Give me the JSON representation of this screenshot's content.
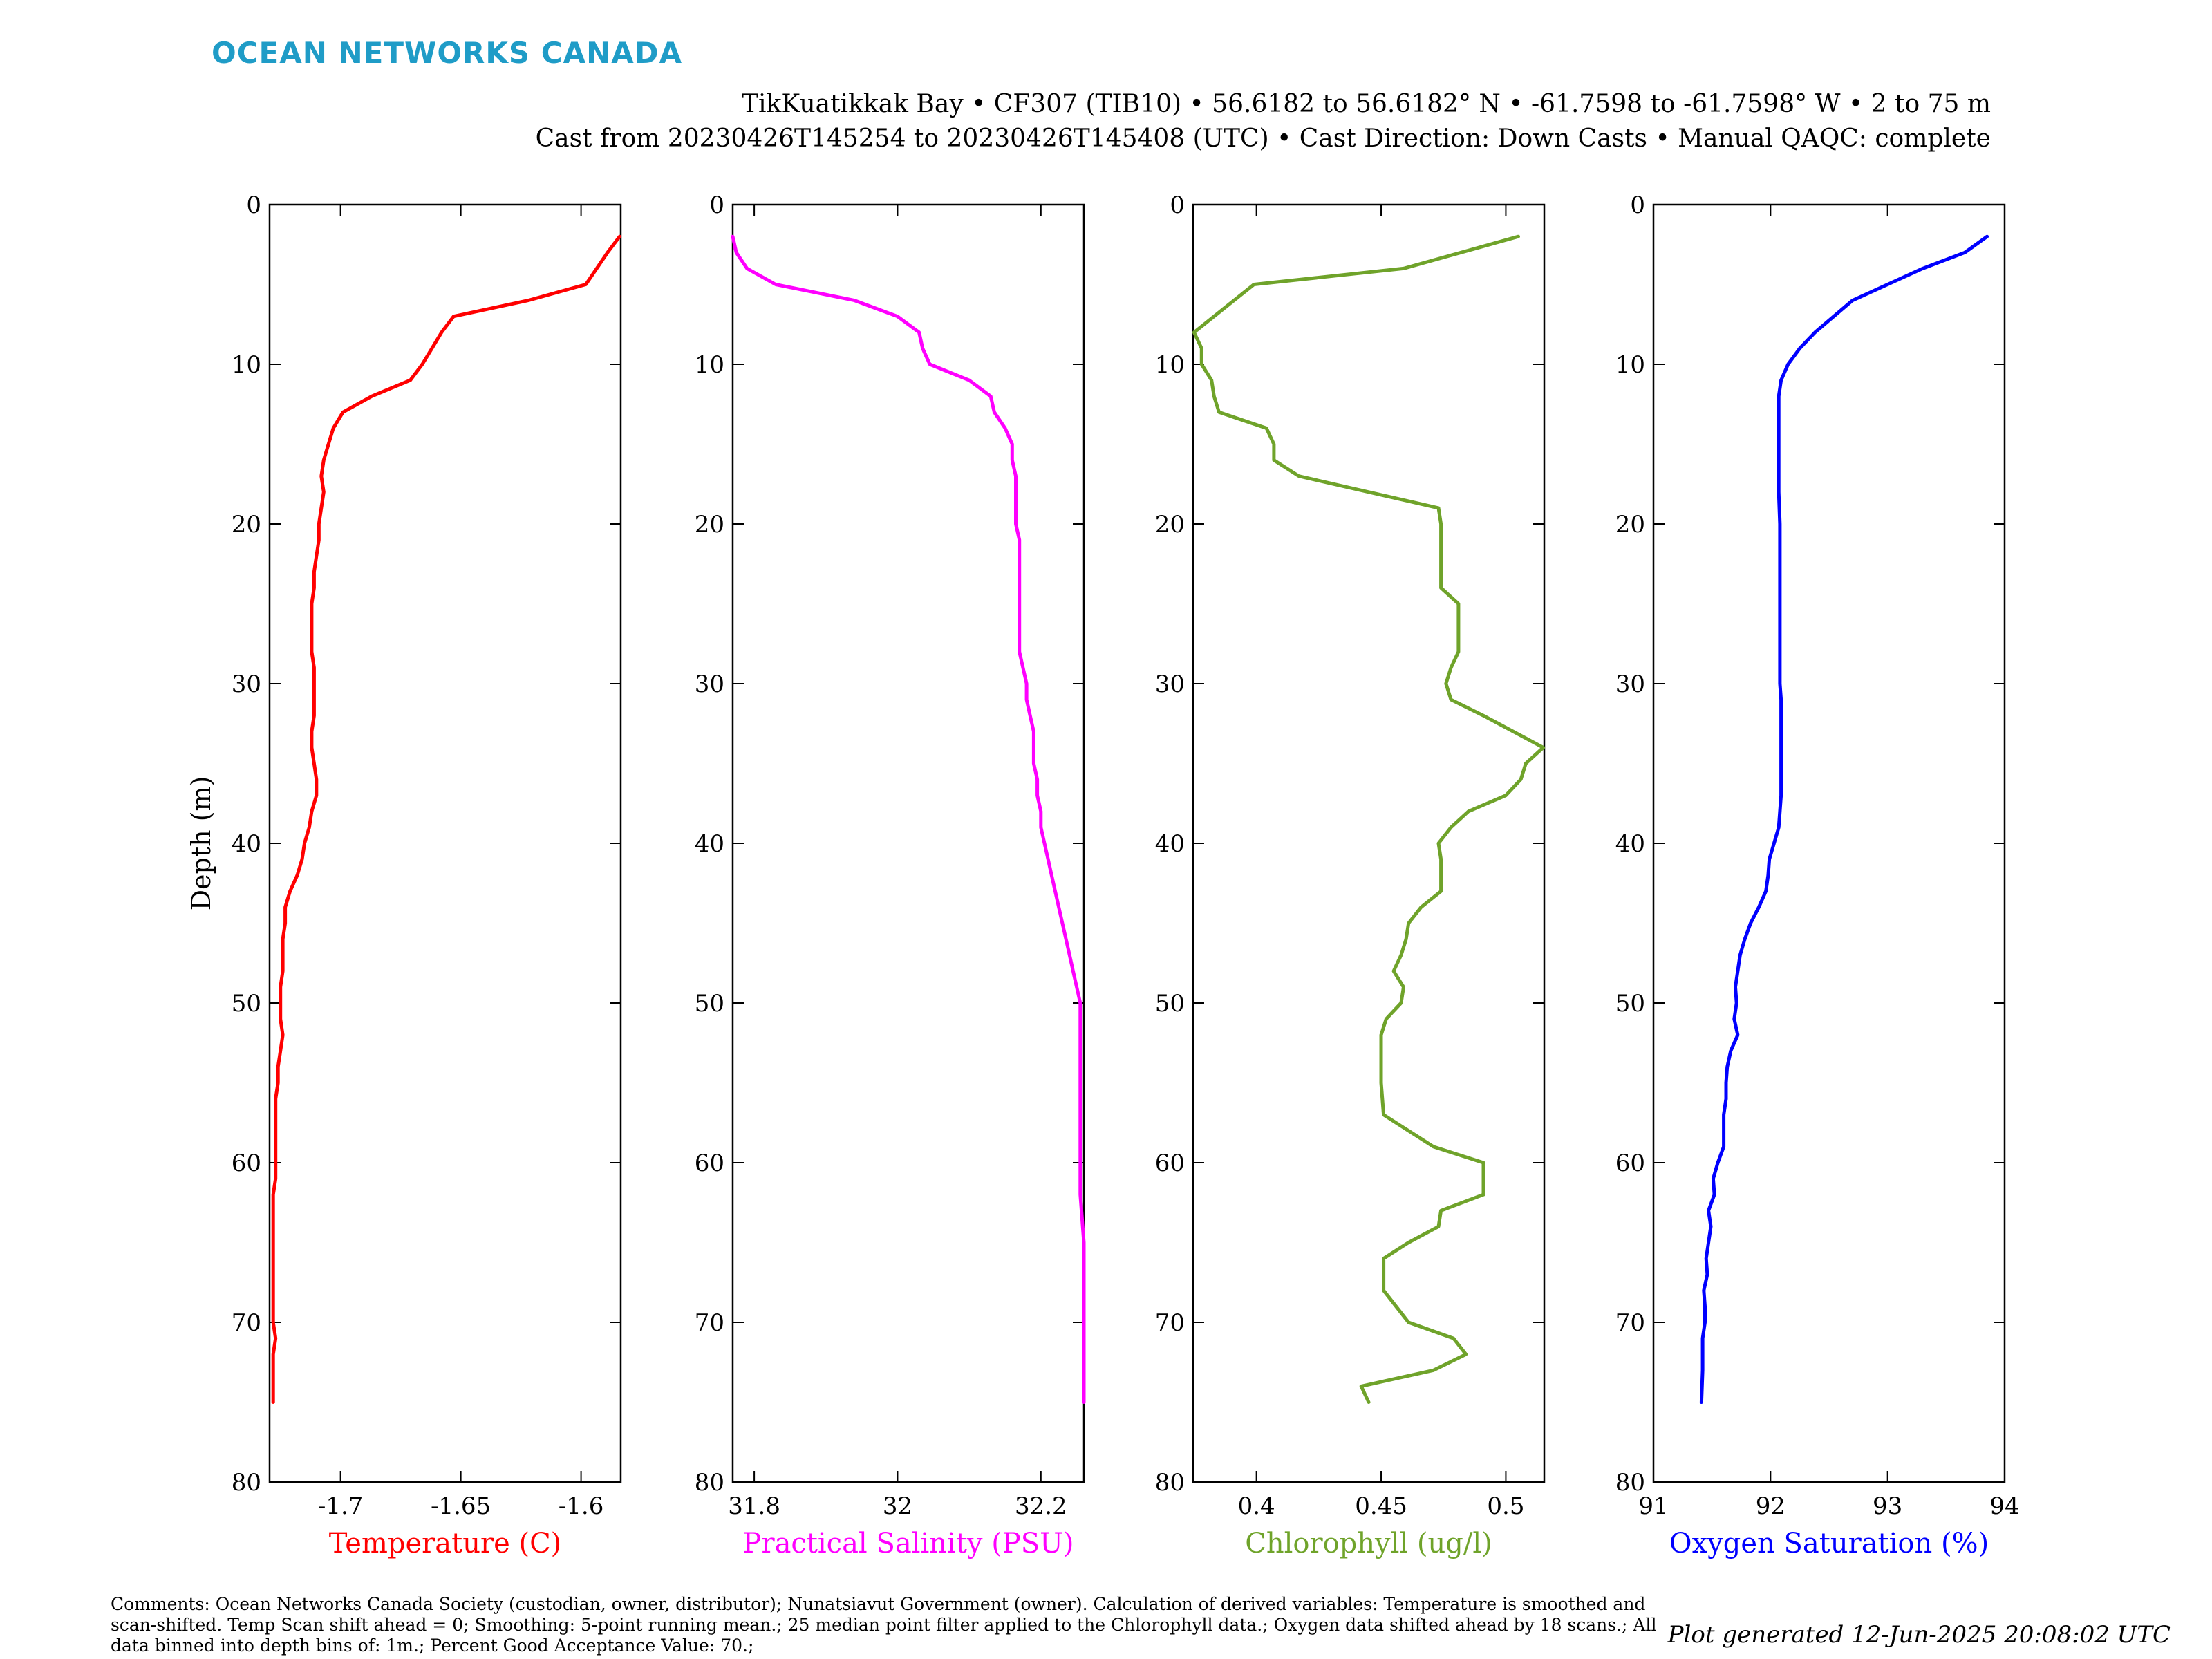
{
  "brand": "OCEAN NETWORKS CANADA",
  "header": {
    "line1": "TikKuatikkak Bay • CF307 (TIB10) • 56.6182 to 56.6182° N • -61.7598 to -61.7598° W • 2 to 75 m",
    "line2": "Cast from 20230426T145254 to 20230426T145408 (UTC) • Cast Direction: Down Casts • Manual QAQC: complete"
  },
  "comments": "Comments: Ocean Networks Canada Society (custodian, owner, distributor); Nunatsiavut Government (owner). Calculation of derived variables: Temperature is smoothed and scan-shifted. Temp Scan shift ahead = 0; Smoothing: 5-point running mean.; 25 median point filter applied to the Chlorophyll data.; Oxygen data shifted ahead by 18 scans.; All data binned into depth bins of: 1m.; Percent Good Acceptance Value: 70.;",
  "generated": "Plot generated 12-Jun-2025 20:08:02 UTC",
  "chart_data": [
    {
      "type": "line",
      "xlabel": "Temperature (C)",
      "ylabel": "Depth (m)",
      "color": "#ff0000",
      "xlim": [
        -1.7295,
        -1.5835
      ],
      "ylim": [
        0,
        80
      ],
      "y_reversed": true,
      "xticks": [
        -1.7,
        -1.65,
        -1.6
      ],
      "xticklabels": [
        "-1.7",
        "-1.65",
        "-1.6"
      ],
      "yticks": [
        0,
        10,
        20,
        30,
        40,
        50,
        60,
        70,
        80
      ],
      "yticklabels": [
        "0",
        "10",
        "20",
        "30",
        "40",
        "50",
        "60",
        "70",
        "80"
      ],
      "x": [
        -1.584,
        -1.589,
        -1.598,
        -1.622,
        -1.653,
        -1.658,
        -1.662,
        -1.666,
        -1.671,
        -1.687,
        -1.699,
        -1.703,
        -1.705,
        -1.707,
        -1.708,
        -1.707,
        -1.708,
        -1.709,
        -1.709,
        -1.71,
        -1.711,
        -1.711,
        -1.712,
        -1.712,
        -1.712,
        -1.712,
        -1.711,
        -1.711,
        -1.711,
        -1.711,
        -1.712,
        -1.712,
        -1.711,
        -1.71,
        -1.71,
        -1.712,
        -1.713,
        -1.715,
        -1.716,
        -1.718,
        -1.721,
        -1.723,
        -1.723,
        -1.724,
        -1.724,
        -1.724,
        -1.725,
        -1.725,
        -1.725,
        -1.724,
        -1.725,
        -1.726,
        -1.726,
        -1.727,
        -1.727,
        -1.727,
        -1.727,
        -1.727,
        -1.727,
        -1.728,
        -1.728,
        -1.728,
        -1.728,
        -1.728,
        -1.728,
        -1.728,
        -1.728,
        -1.728,
        -1.727,
        -1.728,
        -1.728,
        -1.728,
        -1.728
      ],
      "y": [
        2,
        3,
        5,
        6,
        7,
        8,
        9,
        10,
        11,
        12,
        13,
        14,
        15,
        16,
        17,
        18,
        19,
        20,
        21,
        22,
        23,
        24,
        25,
        26,
        27,
        28,
        29,
        30,
        31,
        32,
        33,
        34,
        35,
        36,
        37,
        38,
        39,
        40,
        41,
        42,
        43,
        44,
        45,
        46,
        47,
        48,
        49,
        50,
        51,
        52,
        53,
        54,
        55,
        56,
        57,
        58,
        59,
        60,
        61,
        62,
        63,
        64,
        65,
        66,
        67,
        68,
        69,
        70,
        71,
        72,
        73,
        74,
        75
      ]
    },
    {
      "type": "line",
      "xlabel": "Practical Salinity (PSU)",
      "color": "#ff00ff",
      "xlim": [
        31.77,
        32.26
      ],
      "ylim": [
        0,
        80
      ],
      "y_reversed": true,
      "xticks": [
        31.8,
        32,
        32.2
      ],
      "xticklabels": [
        "31.8",
        "32",
        "32.2"
      ],
      "yticks": [
        0,
        10,
        20,
        30,
        40,
        50,
        60,
        70,
        80
      ],
      "yticklabels": [
        "0",
        "10",
        "20",
        "30",
        "40",
        "50",
        "60",
        "70",
        "80"
      ],
      "x": [
        31.77,
        31.775,
        31.79,
        31.83,
        31.94,
        32.0,
        32.03,
        32.035,
        32.045,
        32.1,
        32.13,
        32.135,
        32.15,
        32.16,
        32.16,
        32.165,
        32.165,
        32.165,
        32.165,
        32.17,
        32.17,
        32.17,
        32.17,
        32.17,
        32.17,
        32.17,
        32.17,
        32.175,
        32.18,
        32.18,
        32.185,
        32.19,
        32.19,
        32.19,
        32.195,
        32.195,
        32.2,
        32.2,
        32.205,
        32.21,
        32.215,
        32.22,
        32.225,
        32.23,
        32.235,
        32.24,
        32.245,
        32.25,
        32.255,
        32.255,
        32.255,
        32.255,
        32.255,
        32.255,
        32.255,
        32.255,
        32.26,
        32.26,
        32.26,
        32.26
      ],
      "y": [
        2,
        3,
        4,
        5,
        6,
        7,
        8,
        9,
        10,
        11,
        12,
        13,
        14,
        15,
        16,
        17,
        18,
        19,
        20,
        21,
        22,
        23,
        24,
        25,
        26,
        27,
        28,
        29,
        30,
        31,
        32,
        33,
        34,
        35,
        36,
        37,
        38,
        39,
        40,
        41,
        42,
        43,
        44,
        45,
        46,
        47,
        48,
        49,
        50,
        51,
        52,
        53,
        55,
        57,
        59,
        62,
        65,
        68,
        71,
        75
      ]
    },
    {
      "type": "line",
      "xlabel": "Chlorophyll (ug/l)",
      "color": "#6fa32a",
      "xlim": [
        0.3746,
        0.5154
      ],
      "ylim": [
        0,
        80
      ],
      "y_reversed": true,
      "xticks": [
        0.4,
        0.45,
        0.5
      ],
      "xticklabels": [
        "0.4",
        "0.45",
        "0.5"
      ],
      "yticks": [
        0,
        10,
        20,
        30,
        40,
        50,
        60,
        70,
        80
      ],
      "yticklabels": [
        "0",
        "10",
        "20",
        "30",
        "40",
        "50",
        "60",
        "70",
        "80"
      ],
      "x": [
        0.505,
        0.459,
        0.399,
        0.375,
        0.378,
        0.378,
        0.382,
        0.383,
        0.385,
        0.404,
        0.407,
        0.407,
        0.417,
        0.473,
        0.474,
        0.474,
        0.474,
        0.481,
        0.481,
        0.481,
        0.478,
        0.476,
        0.478,
        0.491,
        0.515,
        0.508,
        0.506,
        0.5,
        0.485,
        0.478,
        0.473,
        0.474,
        0.474,
        0.474,
        0.466,
        0.461,
        0.46,
        0.458,
        0.455,
        0.459,
        0.458,
        0.452,
        0.45,
        0.45,
        0.45,
        0.45,
        0.451,
        0.471,
        0.491,
        0.491,
        0.491,
        0.474,
        0.473,
        0.461,
        0.451,
        0.451,
        0.451,
        0.461,
        0.479,
        0.484,
        0.471,
        0.442,
        0.445
      ],
      "y": [
        2,
        4,
        5,
        8,
        9,
        10,
        11,
        12,
        13,
        14,
        15,
        16,
        17,
        19,
        20,
        22,
        24,
        25,
        26,
        28,
        29,
        30,
        31,
        32,
        34,
        35,
        36,
        37,
        38,
        39,
        40,
        41,
        42,
        43,
        44,
        45,
        46,
        47,
        48,
        49,
        50,
        51,
        52,
        53,
        54,
        55,
        57,
        59,
        60,
        61,
        62,
        63,
        64,
        65,
        66,
        67,
        68,
        70,
        71,
        72,
        73,
        74,
        75
      ]
    },
    {
      "type": "line",
      "xlabel": "Oxygen Saturation (%)",
      "color": "#0000ff",
      "xlim": [
        91,
        94
      ],
      "ylim": [
        0,
        80
      ],
      "y_reversed": true,
      "xticks": [
        91,
        92,
        93,
        94
      ],
      "xticklabels": [
        "91",
        "92",
        "93",
        "94"
      ],
      "yticks": [
        0,
        10,
        20,
        30,
        40,
        50,
        60,
        70,
        80
      ],
      "yticklabels": [
        "0",
        "10",
        "20",
        "30",
        "40",
        "50",
        "60",
        "70",
        "80"
      ],
      "x": [
        93.85,
        93.66,
        93.3,
        93.0,
        92.7,
        92.54,
        92.38,
        92.25,
        92.15,
        92.09,
        92.07,
        92.07,
        92.07,
        92.07,
        92.08,
        92.08,
        92.08,
        92.08,
        92.08,
        92.08,
        92.08,
        92.09,
        92.09,
        92.09,
        92.09,
        92.09,
        92.09,
        92.09,
        92.08,
        92.07,
        92.03,
        91.99,
        91.98,
        91.96,
        91.9,
        91.83,
        91.78,
        91.74,
        91.72,
        91.7,
        91.71,
        91.69,
        91.72,
        91.66,
        91.63,
        91.62,
        91.62,
        91.6,
        91.6,
        91.6,
        91.55,
        91.51,
        91.52,
        91.47,
        91.49,
        91.47,
        91.45,
        91.46,
        91.43,
        91.44,
        91.44,
        91.42,
        91.42,
        91.42,
        91.41
      ],
      "y": [
        2,
        3,
        4,
        5,
        6,
        7,
        8,
        9,
        10,
        11,
        12,
        14,
        16,
        18,
        20,
        22,
        24,
        26,
        28,
        29,
        30,
        31,
        32,
        33,
        34,
        35,
        36,
        37,
        38,
        39,
        40,
        41,
        42,
        43,
        44,
        45,
        46,
        47,
        48,
        49,
        50,
        51,
        52,
        53,
        54,
        55,
        56,
        57,
        58,
        59,
        60,
        61,
        62,
        63,
        64,
        65,
        66,
        67,
        68,
        69,
        70,
        71,
        72,
        73,
        75
      ]
    }
  ]
}
